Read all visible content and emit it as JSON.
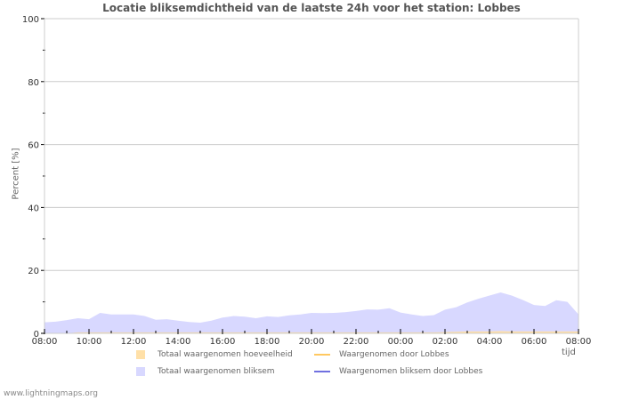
{
  "chart_data": {
    "type": "area",
    "title": "Locatie bliksemdichtheid van de laatste 24h voor het station: Lobbes",
    "xlabel": "tijd",
    "ylabel": "Percent   [%]",
    "ylim": [
      0,
      100
    ],
    "y_ticks": [
      0,
      20,
      40,
      60,
      80,
      100
    ],
    "x_tick_labels": [
      "08:00",
      "10:00",
      "12:00",
      "14:00",
      "16:00",
      "18:00",
      "20:00",
      "22:00",
      "00:00",
      "02:00",
      "04:00",
      "06:00",
      "08:00"
    ],
    "grid": true,
    "legend_position": "bottom",
    "x": [
      "08:00",
      "08:30",
      "09:00",
      "09:30",
      "10:00",
      "10:30",
      "11:00",
      "11:30",
      "12:00",
      "12:30",
      "13:00",
      "13:30",
      "14:00",
      "14:30",
      "15:00",
      "15:30",
      "16:00",
      "16:30",
      "17:00",
      "17:30",
      "18:00",
      "18:30",
      "19:00",
      "19:30",
      "20:00",
      "20:30",
      "21:00",
      "21:30",
      "22:00",
      "22:30",
      "23:00",
      "23:30",
      "00:00",
      "00:30",
      "01:00",
      "01:30",
      "02:00",
      "02:30",
      "03:00",
      "03:30",
      "04:00",
      "04:30",
      "05:00",
      "05:30",
      "06:00",
      "06:30",
      "07:00",
      "07:30",
      "08:00"
    ],
    "series": [
      {
        "name": "Totaal waargenomen bliksem",
        "type": "area",
        "color": "#d8d8ff",
        "values": [
          3.5,
          3.7,
          4.2,
          4.8,
          4.5,
          6.5,
          6.0,
          6.0,
          6.0,
          5.5,
          4.3,
          4.5,
          4.0,
          3.6,
          3.4,
          4.0,
          5.0,
          5.5,
          5.3,
          4.8,
          5.4,
          5.2,
          5.7,
          6.0,
          6.5,
          6.4,
          6.5,
          6.7,
          7.1,
          7.6,
          7.5,
          8.0,
          6.6,
          6.0,
          5.5,
          5.8,
          7.5,
          8.3,
          9.8,
          11.0,
          12.0,
          13.0,
          12.0,
          10.6,
          9.0,
          8.7,
          10.5,
          10.0,
          6.0
        ]
      },
      {
        "name": "Totaal waargenomen hoeveelheid",
        "type": "area",
        "color": "#ffe0a8",
        "values": [
          0,
          0,
          0,
          0.3,
          0.3,
          0.3,
          0.3,
          0.3,
          0.3,
          0.3,
          0.3,
          0.3,
          0.3,
          0.3,
          0.3,
          0.3,
          0.3,
          0.3,
          0.3,
          0.3,
          0.3,
          0.3,
          0.3,
          0.3,
          0.3,
          0.3,
          0.3,
          0.3,
          0.3,
          0.3,
          0.3,
          0.3,
          0.3,
          0.3,
          0.3,
          0.3,
          0.4,
          0.5,
          0.6,
          0.6,
          0.6,
          0.7,
          0.6,
          0.6,
          0.6,
          0.6,
          0.6,
          0.6,
          0.6
        ]
      },
      {
        "name": "Waargenomen door Lobbes",
        "type": "line",
        "color": "#ffc860",
        "values": []
      },
      {
        "name": "Waargenomen bliksem door Lobbes",
        "type": "line",
        "color": "#7070e0",
        "values": []
      }
    ]
  },
  "legend": [
    {
      "label": "Totaal waargenomen hoeveelheid",
      "kind": "swatch",
      "color": "#ffe0a8"
    },
    {
      "label": "Waargenomen door Lobbes",
      "kind": "line",
      "color": "#ffc860"
    },
    {
      "label": "Totaal waargenomen bliksem",
      "kind": "swatch",
      "color": "#d8d8ff"
    },
    {
      "label": "Waargenomen bliksem door Lobbes",
      "kind": "line",
      "color": "#7070e0"
    }
  ],
  "footer": "www.lightningmaps.org"
}
